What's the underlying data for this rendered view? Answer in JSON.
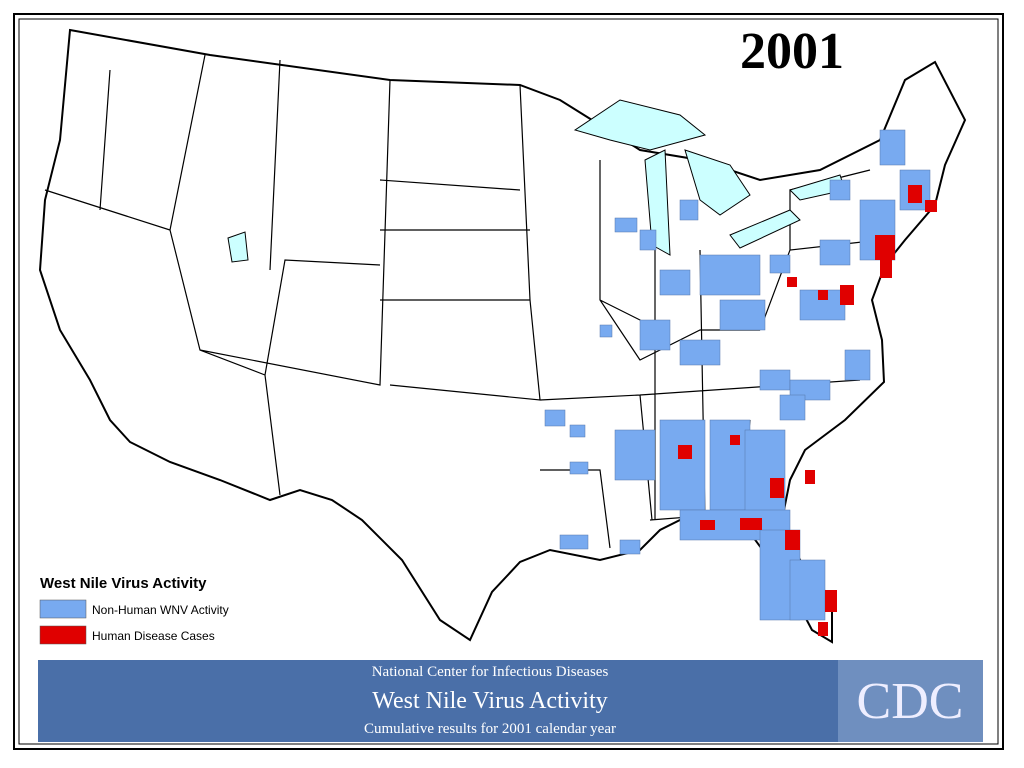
{
  "map": {
    "year": "2001",
    "legend": {
      "title": "West Nile Virus Activity",
      "items": [
        {
          "label": "Non-Human WNV Activity",
          "color": "#78aaf0"
        },
        {
          "label": "Human Disease Cases",
          "color": "#e00000"
        }
      ]
    },
    "footer": {
      "agency": "National Center for Infectious Diseases",
      "title": "West Nile Virus Activity",
      "subtitle": "Cumulative results for 2001 calendar year",
      "logo": "CDC"
    }
  }
}
